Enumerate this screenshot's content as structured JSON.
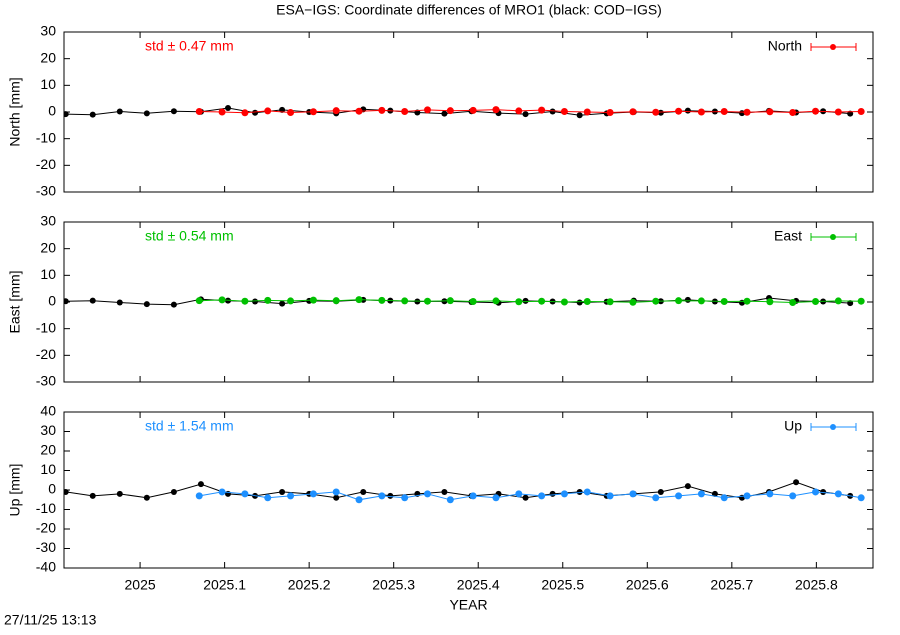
{
  "title": "ESA−IGS: Coordinate differences of MRO1 (black: COD−IGS)",
  "timestamp": "27/11/25 13:13",
  "chart_data": [
    {
      "type": "scatter",
      "ylabel": "North [mm]",
      "annotation": "std ± 0.47 mm",
      "xlim": [
        2024.91,
        2025.867
      ],
      "xticks": [
        2025,
        2025.1,
        2025.2,
        2025.3,
        2025.4,
        2025.5,
        2025.6,
        2025.7,
        2025.8
      ],
      "ylim": [
        -30,
        30
      ],
      "yticks": [
        -30,
        -20,
        -10,
        0,
        10,
        20,
        30
      ],
      "series": [
        {
          "color": "#000000",
          "x": [
            2024.912,
            2024.944,
            2024.976,
            2025.008,
            2025.04,
            2025.072,
            2025.104,
            2025.136,
            2025.168,
            2025.2,
            2025.232,
            2025.264,
            2025.296,
            2025.328,
            2025.36,
            2025.392,
            2025.424,
            2025.456,
            2025.488,
            2025.52,
            2025.552,
            2025.584,
            2025.616,
            2025.648,
            2025.68,
            2025.712,
            2025.744,
            2025.776,
            2025.808,
            2025.84
          ],
          "values": [
            -0.8,
            -1,
            0.2,
            -0.5,
            0.3,
            0.1,
            1.5,
            -0.3,
            0.8,
            0,
            -0.5,
            1,
            0.5,
            -0.2,
            -0.6,
            0.3,
            -0.4,
            -0.8,
            0.2,
            -1.2,
            -0.5,
            0,
            -0.3,
            0.5,
            0.2,
            -0.4,
            0.4,
            -0.2,
            0.3,
            -0.6
          ]
        },
        {
          "name": "North",
          "color": "#ff0000",
          "x": [
            2025.07,
            2025.097,
            2025.124,
            2025.151,
            2025.178,
            2025.205,
            2025.232,
            2025.259,
            2025.286,
            2025.313,
            2025.34,
            2025.367,
            2025.394,
            2025.421,
            2025.448,
            2025.475,
            2025.502,
            2025.529,
            2025.556,
            2025.583,
            2025.61,
            2025.637,
            2025.664,
            2025.691,
            2025.718,
            2025.745,
            2025.772,
            2025.799,
            2025.826,
            2025.853
          ],
          "values": [
            0.2,
            0,
            -0.3,
            0.4,
            -0.2,
            0.1,
            0.5,
            0.3,
            0.6,
            0.2,
            0.8,
            0.5,
            0.6,
            0.9,
            0.4,
            0.7,
            0.2,
            0,
            -0.2,
            0.1,
            -0.1,
            0.3,
            0,
            0.2,
            -0.1,
            0.1,
            -0.2,
            0.3,
            0,
            0.2
          ]
        }
      ]
    },
    {
      "type": "scatter",
      "ylabel": "East [mm]",
      "annotation": "std ± 0.54 mm",
      "xlim": [
        2024.91,
        2025.867
      ],
      "xticks": [
        2025,
        2025.1,
        2025.2,
        2025.3,
        2025.4,
        2025.5,
        2025.6,
        2025.7,
        2025.8
      ],
      "ylim": [
        -30,
        30
      ],
      "yticks": [
        -30,
        -20,
        -10,
        0,
        10,
        20,
        30
      ],
      "series": [
        {
          "color": "#000000",
          "x": [
            2024.912,
            2024.944,
            2024.976,
            2025.008,
            2025.04,
            2025.072,
            2025.104,
            2025.136,
            2025.168,
            2025.2,
            2025.232,
            2025.264,
            2025.296,
            2025.328,
            2025.36,
            2025.392,
            2025.424,
            2025.456,
            2025.488,
            2025.52,
            2025.552,
            2025.584,
            2025.616,
            2025.648,
            2025.68,
            2025.712,
            2025.744,
            2025.776,
            2025.808,
            2025.84
          ],
          "values": [
            0.3,
            0.5,
            -0.2,
            -0.8,
            -1,
            1,
            0.5,
            0.2,
            -0.6,
            0.4,
            0.3,
            0.8,
            0.5,
            0.2,
            0.3,
            0,
            -0.3,
            0.4,
            0.2,
            -0.2,
            0.1,
            0.5,
            0.3,
            0.8,
            0.2,
            -0.3,
            1.5,
            0.4,
            0.2,
            -0.4
          ]
        },
        {
          "name": "East",
          "color": "#00c000",
          "x": [
            2025.07,
            2025.097,
            2025.124,
            2025.151,
            2025.178,
            2025.205,
            2025.232,
            2025.259,
            2025.286,
            2025.313,
            2025.34,
            2025.367,
            2025.394,
            2025.421,
            2025.448,
            2025.475,
            2025.502,
            2025.529,
            2025.556,
            2025.583,
            2025.61,
            2025.637,
            2025.664,
            2025.691,
            2025.718,
            2025.745,
            2025.772,
            2025.799,
            2025.826,
            2025.853
          ],
          "values": [
            0.5,
            0.8,
            0.3,
            0.6,
            0.4,
            0.7,
            0.5,
            0.9,
            0.6,
            0.4,
            0.3,
            0.5,
            0.2,
            0.4,
            0.1,
            0.3,
            0,
            0.2,
            0.1,
            -0.1,
            0.3,
            0.5,
            0.4,
            0.2,
            0.3,
            0.1,
            -0.2,
            0.2,
            0.4,
            0.3
          ]
        }
      ]
    },
    {
      "type": "scatter",
      "ylabel": "Up [mm]",
      "xlabel": "YEAR",
      "annotation": "std ± 1.54 mm",
      "xlim": [
        2024.91,
        2025.867
      ],
      "xticks": [
        2025,
        2025.1,
        2025.2,
        2025.3,
        2025.4,
        2025.5,
        2025.6,
        2025.7,
        2025.8
      ],
      "ylim": [
        -40,
        40
      ],
      "yticks": [
        -40,
        -30,
        -20,
        -10,
        0,
        10,
        20,
        30,
        40
      ],
      "series": [
        {
          "color": "#000000",
          "x": [
            2024.912,
            2024.944,
            2024.976,
            2025.008,
            2025.04,
            2025.072,
            2025.104,
            2025.136,
            2025.168,
            2025.2,
            2025.232,
            2025.264,
            2025.296,
            2025.328,
            2025.36,
            2025.392,
            2025.424,
            2025.456,
            2025.488,
            2025.52,
            2025.552,
            2025.584,
            2025.616,
            2025.648,
            2025.68,
            2025.712,
            2025.744,
            2025.776,
            2025.808,
            2025.84
          ],
          "values": [
            -1,
            -3,
            -2,
            -4,
            -1,
            3,
            -2,
            -3,
            -1,
            -2,
            -4,
            -1,
            -3,
            -2,
            -1,
            -3,
            -2,
            -4,
            -2,
            -1,
            -3,
            -2,
            -1,
            2,
            -2,
            -4,
            -1,
            4,
            -1,
            -3
          ]
        },
        {
          "name": "Up",
          "color": "#1e90ff",
          "x": [
            2025.07,
            2025.097,
            2025.124,
            2025.151,
            2025.178,
            2025.205,
            2025.232,
            2025.259,
            2025.286,
            2025.313,
            2025.34,
            2025.367,
            2025.394,
            2025.421,
            2025.448,
            2025.475,
            2025.502,
            2025.529,
            2025.556,
            2025.583,
            2025.61,
            2025.637,
            2025.664,
            2025.691,
            2025.718,
            2025.745,
            2025.772,
            2025.799,
            2025.826,
            2025.853
          ],
          "values": [
            -3,
            -1,
            -2,
            -4,
            -3,
            -2,
            -1,
            -5,
            -3,
            -4,
            -2,
            -5,
            -3,
            -4,
            -2,
            -3,
            -2,
            -1,
            -3,
            -2,
            -4,
            -3,
            -2,
            -4,
            -3,
            -2,
            -3,
            -1,
            -2,
            -4
          ]
        }
      ]
    }
  ]
}
